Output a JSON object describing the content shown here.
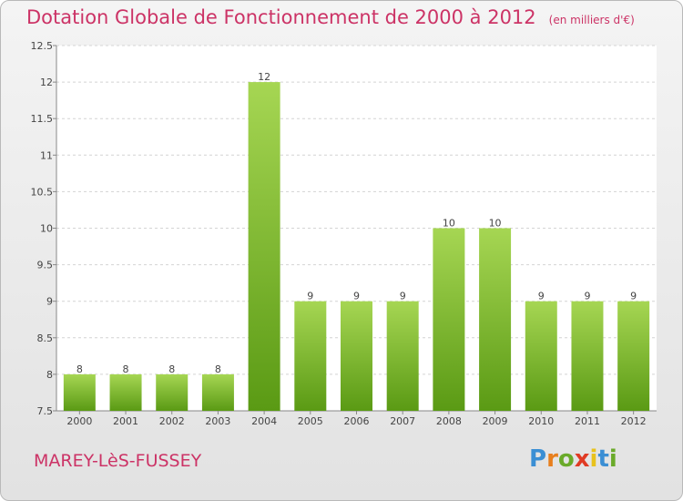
{
  "title": "Dotation Globale de Fonctionnement de 2000 à 2012",
  "unit": "(en milliers d'€)",
  "commune": "MAREY-LèS-FUSSEY",
  "logo": {
    "letters": [
      "P",
      "r",
      "o",
      "x",
      "i",
      "t",
      "i"
    ],
    "colors": [
      "#3b8fd4",
      "#e87f1d",
      "#6aaa2a",
      "#e03b24",
      "#e8c21d",
      "#3b8fd4",
      "#6aaa2a"
    ]
  },
  "colors": {
    "title": "#cc3366",
    "bar_top": "#a6d653",
    "bar_bottom": "#5a9a14"
  },
  "chart_data": {
    "type": "bar",
    "categories": [
      "2000",
      "2001",
      "2002",
      "2003",
      "2004",
      "2005",
      "2006",
      "2007",
      "2008",
      "2009",
      "2010",
      "2011",
      "2012"
    ],
    "values": [
      8,
      8,
      8,
      8,
      12,
      9,
      9,
      9,
      10,
      10,
      9,
      9,
      9
    ],
    "ylim": [
      7.5,
      12.5
    ],
    "yticks": [
      "7.5",
      "8",
      "8.5",
      "9",
      "9.5",
      "10",
      "10.5",
      "11",
      "11.5",
      "12",
      "12.5"
    ],
    "grid": true
  }
}
